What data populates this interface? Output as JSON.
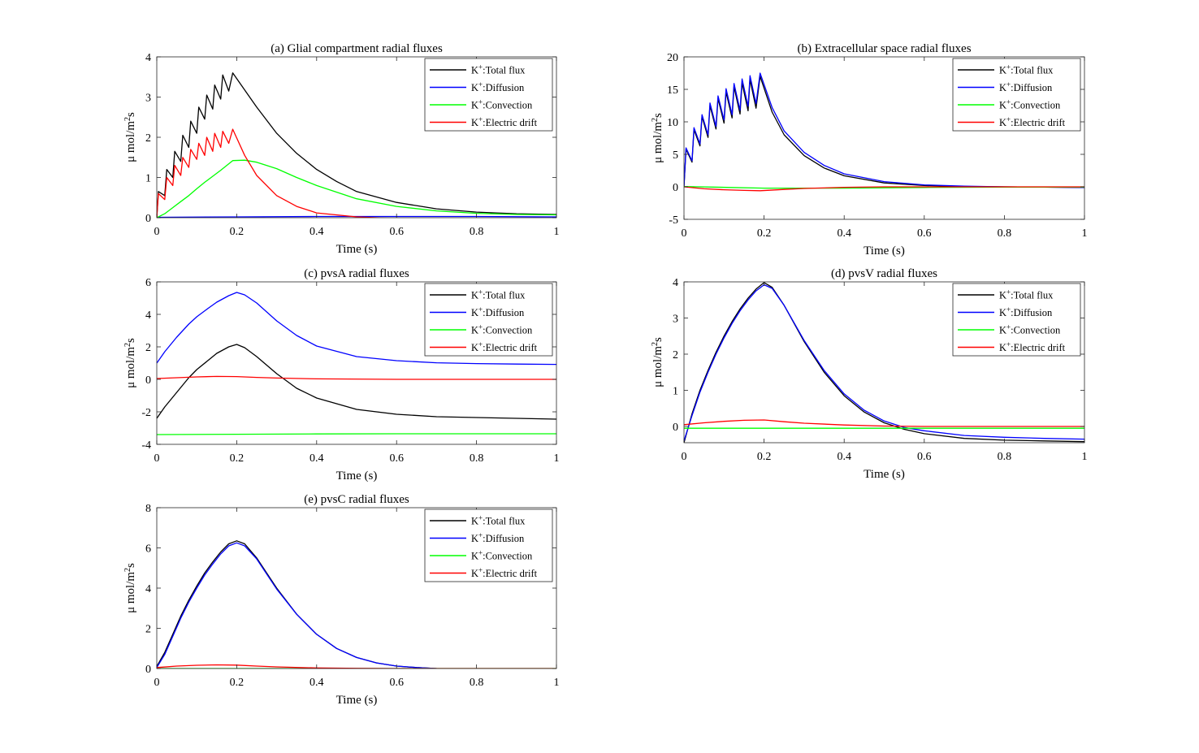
{
  "figure": {
    "background": "#ffffff"
  },
  "colors": {
    "K+:Total flux": "#000000",
    "K+:Diffusion": "#0000ff",
    "K+:Convection": "#00ff00",
    "K+:Electric drift": "#ff0000"
  },
  "chart_data": [
    {
      "type": "line",
      "title": "(a) Glial compartment radial fluxes",
      "xlabel": "Time (s)",
      "ylabel": "μ mol/m²s",
      "xlim": [
        0,
        1
      ],
      "ylim": [
        0,
        4
      ],
      "xticks": [
        0,
        0.2,
        0.4,
        0.6,
        0.8,
        1
      ],
      "xtick_labels": [
        "0",
        "0.2",
        "0.4",
        "0.6",
        "0.8",
        "1"
      ],
      "yticks": [
        0,
        1,
        2,
        3,
        4
      ],
      "ytick_labels": [
        "0",
        "1",
        "2",
        "3",
        "4"
      ],
      "legend_position": "top-right",
      "series": [
        {
          "name": "K+:Total flux",
          "color": "#000000",
          "x": [
            0,
            0.004,
            0.02,
            0.025,
            0.04,
            0.045,
            0.06,
            0.065,
            0.08,
            0.085,
            0.1,
            0.105,
            0.12,
            0.125,
            0.14,
            0.145,
            0.16,
            0.165,
            0.18,
            0.19,
            0.25,
            0.3,
            0.35,
            0.4,
            0.45,
            0.5,
            0.6,
            0.7,
            0.8,
            0.9,
            1.0
          ],
          "y": [
            0,
            0.65,
            0.55,
            1.2,
            1.0,
            1.65,
            1.4,
            2.05,
            1.75,
            2.4,
            2.1,
            2.75,
            2.45,
            3.05,
            2.7,
            3.3,
            2.95,
            3.55,
            3.15,
            3.6,
            2.75,
            2.1,
            1.6,
            1.2,
            0.9,
            0.65,
            0.38,
            0.22,
            0.14,
            0.1,
            0.08
          ]
        },
        {
          "name": "K+:Diffusion",
          "color": "#0000ff",
          "x": [
            0,
            0.2,
            0.4,
            0.6,
            0.8,
            1.0
          ],
          "y": [
            0.01,
            0.02,
            0.03,
            0.03,
            0.03,
            0.02
          ]
        },
        {
          "name": "K+:Convection",
          "color": "#00ff00",
          "x": [
            0,
            0.02,
            0.04,
            0.06,
            0.08,
            0.1,
            0.12,
            0.14,
            0.16,
            0.19,
            0.22,
            0.25,
            0.3,
            0.35,
            0.4,
            0.5,
            0.6,
            0.7,
            0.8,
            0.9,
            1.0
          ],
          "y": [
            0,
            0.1,
            0.25,
            0.4,
            0.55,
            0.72,
            0.88,
            1.03,
            1.18,
            1.42,
            1.43,
            1.38,
            1.22,
            1.0,
            0.8,
            0.47,
            0.28,
            0.17,
            0.11,
            0.08,
            0.07
          ]
        },
        {
          "name": "K+:Electric drift",
          "color": "#ff0000",
          "x": [
            0,
            0.004,
            0.02,
            0.025,
            0.04,
            0.045,
            0.06,
            0.065,
            0.08,
            0.085,
            0.1,
            0.105,
            0.12,
            0.125,
            0.14,
            0.145,
            0.16,
            0.165,
            0.18,
            0.19,
            0.22,
            0.25,
            0.3,
            0.35,
            0.4,
            0.5,
            0.6,
            0.7,
            0.8,
            1.0
          ],
          "y": [
            0,
            0.6,
            0.45,
            1.0,
            0.8,
            1.3,
            1.05,
            1.5,
            1.25,
            1.7,
            1.45,
            1.85,
            1.55,
            2.0,
            1.65,
            2.1,
            1.75,
            2.15,
            1.85,
            2.2,
            1.55,
            1.05,
            0.55,
            0.28,
            0.12,
            0.02,
            -0.02,
            -0.04,
            -0.04,
            -0.04
          ]
        }
      ]
    },
    {
      "type": "line",
      "title": "(b) Extracellular space radial fluxes",
      "xlabel": "Time (s)",
      "ylabel": "μ mol/m²s",
      "xlim": [
        0,
        1
      ],
      "ylim": [
        -5,
        20
      ],
      "xticks": [
        0,
        0.2,
        0.4,
        0.6,
        0.8,
        1
      ],
      "xtick_labels": [
        "0",
        "0.2",
        "0.4",
        "0.6",
        "0.8",
        "1"
      ],
      "yticks": [
        -5,
        0,
        5,
        10,
        15,
        20
      ],
      "ytick_labels": [
        "-5",
        "0",
        "5",
        "10",
        "15",
        "20"
      ],
      "legend_position": "top-right",
      "series": [
        {
          "name": "K+:Total flux",
          "color": "#000000",
          "x": [
            0,
            0.005,
            0.02,
            0.025,
            0.04,
            0.045,
            0.06,
            0.065,
            0.08,
            0.085,
            0.1,
            0.105,
            0.12,
            0.125,
            0.14,
            0.145,
            0.16,
            0.165,
            0.18,
            0.19,
            0.22,
            0.25,
            0.3,
            0.35,
            0.4,
            0.5,
            0.6,
            0.7,
            0.8,
            0.9,
            1.0
          ],
          "y": [
            0,
            5.8,
            3.8,
            8.8,
            6.3,
            10.8,
            7.6,
            12.5,
            8.9,
            13.6,
            9.8,
            14.6,
            10.6,
            15.4,
            11.2,
            16.0,
            11.7,
            16.5,
            12.1,
            17.0,
            11.5,
            8.0,
            4.8,
            2.9,
            1.7,
            0.6,
            0.2,
            0.05,
            0.0,
            -0.05,
            -0.1
          ]
        },
        {
          "name": "K+:Diffusion",
          "color": "#0000ff",
          "x": [
            0,
            0.005,
            0.02,
            0.025,
            0.04,
            0.045,
            0.06,
            0.065,
            0.08,
            0.085,
            0.1,
            0.105,
            0.12,
            0.125,
            0.14,
            0.145,
            0.16,
            0.165,
            0.18,
            0.19,
            0.22,
            0.25,
            0.3,
            0.35,
            0.4,
            0.5,
            0.6,
            0.7,
            0.8,
            0.9,
            1.0
          ],
          "y": [
            0,
            6.0,
            4.0,
            9.1,
            6.6,
            11.1,
            8.0,
            12.9,
            9.3,
            14.0,
            10.3,
            15.1,
            11.1,
            15.9,
            11.8,
            16.6,
            12.4,
            17.1,
            12.8,
            17.5,
            12.2,
            8.6,
            5.3,
            3.3,
            2.0,
            0.8,
            0.3,
            0.1,
            0.0,
            -0.05,
            -0.1
          ]
        },
        {
          "name": "K+:Convection",
          "color": "#00ff00",
          "x": [
            0,
            0.2,
            0.4,
            0.6,
            0.8,
            1.0
          ],
          "y": [
            0.05,
            -0.2,
            -0.2,
            -0.1,
            -0.05,
            -0.05
          ]
        },
        {
          "name": "K+:Electric drift",
          "color": "#ff0000",
          "x": [
            0,
            0.05,
            0.1,
            0.15,
            0.19,
            0.25,
            0.3,
            0.4,
            0.5,
            0.6,
            0.8,
            1.0
          ],
          "y": [
            0,
            -0.3,
            -0.45,
            -0.55,
            -0.6,
            -0.4,
            -0.25,
            -0.08,
            0.0,
            0.0,
            0.0,
            0.0
          ]
        }
      ]
    },
    {
      "type": "line",
      "title": "(c) pvsA radial fluxes",
      "xlabel": "Time (s)",
      "ylabel": "μ mol/m²s",
      "xlim": [
        0,
        1
      ],
      "ylim": [
        -4,
        6
      ],
      "xticks": [
        0,
        0.2,
        0.4,
        0.6,
        0.8,
        1
      ],
      "xtick_labels": [
        "0",
        "0.2",
        "0.4",
        "0.6",
        "0.8",
        "1"
      ],
      "yticks": [
        -4,
        -2,
        0,
        2,
        4,
        6
      ],
      "ytick_labels": [
        "-4",
        "-2",
        "0",
        "2",
        "4",
        "6"
      ],
      "legend_position": "top-right",
      "series": [
        {
          "name": "K+:Total flux",
          "color": "#000000",
          "x": [
            0,
            0.02,
            0.05,
            0.08,
            0.1,
            0.13,
            0.15,
            0.18,
            0.2,
            0.22,
            0.25,
            0.3,
            0.35,
            0.4,
            0.5,
            0.6,
            0.7,
            0.8,
            0.9,
            1.0
          ],
          "y": [
            -2.4,
            -1.7,
            -0.8,
            0.1,
            0.6,
            1.2,
            1.6,
            2.0,
            2.15,
            1.95,
            1.4,
            0.35,
            -0.55,
            -1.15,
            -1.85,
            -2.15,
            -2.3,
            -2.35,
            -2.4,
            -2.45
          ]
        },
        {
          "name": "K+:Diffusion",
          "color": "#0000ff",
          "x": [
            0,
            0.02,
            0.05,
            0.08,
            0.1,
            0.13,
            0.15,
            0.18,
            0.2,
            0.22,
            0.25,
            0.3,
            0.35,
            0.4,
            0.5,
            0.6,
            0.7,
            0.8,
            0.9,
            1.0
          ],
          "y": [
            1.0,
            1.7,
            2.6,
            3.4,
            3.85,
            4.4,
            4.75,
            5.15,
            5.35,
            5.2,
            4.7,
            3.6,
            2.7,
            2.05,
            1.4,
            1.15,
            1.02,
            0.97,
            0.94,
            0.92
          ]
        },
        {
          "name": "K+:Convection",
          "color": "#00ff00",
          "x": [
            0,
            0.2,
            0.4,
            0.6,
            0.8,
            1.0
          ],
          "y": [
            -3.4,
            -3.38,
            -3.36,
            -3.35,
            -3.35,
            -3.35
          ]
        },
        {
          "name": "K+:Electric drift",
          "color": "#ff0000",
          "x": [
            0,
            0.05,
            0.1,
            0.15,
            0.2,
            0.25,
            0.3,
            0.4,
            0.6,
            0.8,
            1.0
          ],
          "y": [
            0.05,
            0.1,
            0.15,
            0.18,
            0.17,
            0.12,
            0.08,
            0.03,
            0.0,
            0.0,
            0.0
          ]
        }
      ]
    },
    {
      "type": "line",
      "title": "(d) pvsV radial fluxes",
      "xlabel": "Time (s)",
      "ylabel": "μ mol/m²s",
      "xlim": [
        0,
        1
      ],
      "ylim": [
        -0.45,
        4
      ],
      "xticks": [
        0,
        0.2,
        0.4,
        0.6,
        0.8,
        1
      ],
      "xtick_labels": [
        "0",
        "0.2",
        "0.4",
        "0.6",
        "0.8",
        "1"
      ],
      "yticks": [
        0,
        1,
        2,
        3,
        4
      ],
      "ytick_labels": [
        "0",
        "1",
        "2",
        "3",
        "4"
      ],
      "legend_position": "top-right",
      "series": [
        {
          "name": "K+:Total flux",
          "color": "#000000",
          "x": [
            0,
            0.02,
            0.04,
            0.06,
            0.08,
            0.1,
            0.12,
            0.14,
            0.16,
            0.18,
            0.2,
            0.22,
            0.25,
            0.3,
            0.35,
            0.4,
            0.45,
            0.5,
            0.55,
            0.6,
            0.7,
            0.8,
            0.9,
            1.0
          ],
          "y": [
            -0.45,
            0.35,
            1.0,
            1.55,
            2.05,
            2.5,
            2.9,
            3.25,
            3.55,
            3.8,
            3.98,
            3.85,
            3.35,
            2.35,
            1.5,
            0.85,
            0.4,
            0.1,
            -0.08,
            -0.2,
            -0.33,
            -0.38,
            -0.4,
            -0.42
          ]
        },
        {
          "name": "K+:Diffusion",
          "color": "#0000ff",
          "x": [
            0,
            0.02,
            0.04,
            0.06,
            0.08,
            0.1,
            0.12,
            0.14,
            0.16,
            0.18,
            0.2,
            0.22,
            0.25,
            0.3,
            0.35,
            0.4,
            0.45,
            0.5,
            0.55,
            0.6,
            0.7,
            0.8,
            0.9,
            1.0
          ],
          "y": [
            -0.4,
            0.3,
            0.95,
            1.5,
            2.0,
            2.45,
            2.85,
            3.2,
            3.5,
            3.75,
            3.92,
            3.82,
            3.35,
            2.38,
            1.55,
            0.9,
            0.45,
            0.15,
            -0.03,
            -0.12,
            -0.25,
            -0.3,
            -0.33,
            -0.35
          ]
        },
        {
          "name": "K+:Convection",
          "color": "#00ff00",
          "x": [
            0,
            0.2,
            0.4,
            0.6,
            0.8,
            1.0
          ],
          "y": [
            -0.05,
            -0.05,
            -0.05,
            -0.05,
            -0.05,
            -0.05
          ]
        },
        {
          "name": "K+:Electric drift",
          "color": "#ff0000",
          "x": [
            0,
            0.05,
            0.1,
            0.15,
            0.2,
            0.25,
            0.3,
            0.4,
            0.5,
            0.6,
            0.8,
            1.0
          ],
          "y": [
            0.05,
            0.1,
            0.14,
            0.17,
            0.18,
            0.13,
            0.09,
            0.04,
            0.01,
            0.0,
            0.0,
            0.0
          ]
        }
      ]
    },
    {
      "type": "line",
      "title": "(e) pvsC radial fluxes",
      "xlabel": "Time (s)",
      "ylabel": "μ mol/m²s",
      "xlim": [
        0,
        1
      ],
      "ylim": [
        0,
        8
      ],
      "xticks": [
        0,
        0.2,
        0.4,
        0.6,
        0.8,
        1
      ],
      "xtick_labels": [
        "0",
        "0.2",
        "0.4",
        "0.6",
        "0.8",
        "1"
      ],
      "yticks": [
        0,
        2,
        4,
        6,
        8
      ],
      "ytick_labels": [
        "0",
        "2",
        "4",
        "6",
        "8"
      ],
      "legend_position": "top-right",
      "series": [
        {
          "name": "K+:Total flux",
          "color": "#000000",
          "x": [
            0,
            0.02,
            0.04,
            0.06,
            0.08,
            0.1,
            0.12,
            0.14,
            0.16,
            0.18,
            0.2,
            0.22,
            0.25,
            0.3,
            0.35,
            0.4,
            0.45,
            0.5,
            0.55,
            0.6,
            0.65,
            0.7,
            0.8,
            0.9,
            1.0
          ],
          "y": [
            0.1,
            0.8,
            1.7,
            2.6,
            3.4,
            4.1,
            4.75,
            5.3,
            5.8,
            6.2,
            6.35,
            6.2,
            5.5,
            4.0,
            2.7,
            1.7,
            1.0,
            0.55,
            0.28,
            0.12,
            0.05,
            0.0,
            -0.05,
            -0.07,
            -0.08
          ]
        },
        {
          "name": "K+:Diffusion",
          "color": "#0000ff",
          "x": [
            0,
            0.02,
            0.04,
            0.06,
            0.08,
            0.1,
            0.12,
            0.14,
            0.16,
            0.18,
            0.2,
            0.22,
            0.25,
            0.3,
            0.35,
            0.4,
            0.45,
            0.5,
            0.55,
            0.6,
            0.65,
            0.7,
            0.8,
            0.9,
            1.0
          ],
          "y": [
            0.05,
            0.7,
            1.6,
            2.5,
            3.3,
            4.0,
            4.65,
            5.2,
            5.7,
            6.1,
            6.25,
            6.1,
            5.45,
            3.95,
            2.7,
            1.7,
            1.0,
            0.55,
            0.28,
            0.12,
            0.05,
            0.0,
            -0.05,
            -0.07,
            -0.08
          ]
        },
        {
          "name": "K+:Convection",
          "color": "#00ff00",
          "x": [
            0,
            0.2,
            0.4,
            0.6,
            0.8,
            1.0
          ],
          "y": [
            0.0,
            0.0,
            0.0,
            0.0,
            0.0,
            0.0
          ]
        },
        {
          "name": "K+:Electric drift",
          "color": "#ff0000",
          "x": [
            0,
            0.05,
            0.1,
            0.15,
            0.2,
            0.25,
            0.3,
            0.4,
            0.5,
            0.6,
            0.8,
            1.0
          ],
          "y": [
            0.05,
            0.12,
            0.16,
            0.18,
            0.17,
            0.12,
            0.08,
            0.03,
            0.01,
            0.0,
            0.0,
            0.0
          ]
        }
      ]
    }
  ]
}
